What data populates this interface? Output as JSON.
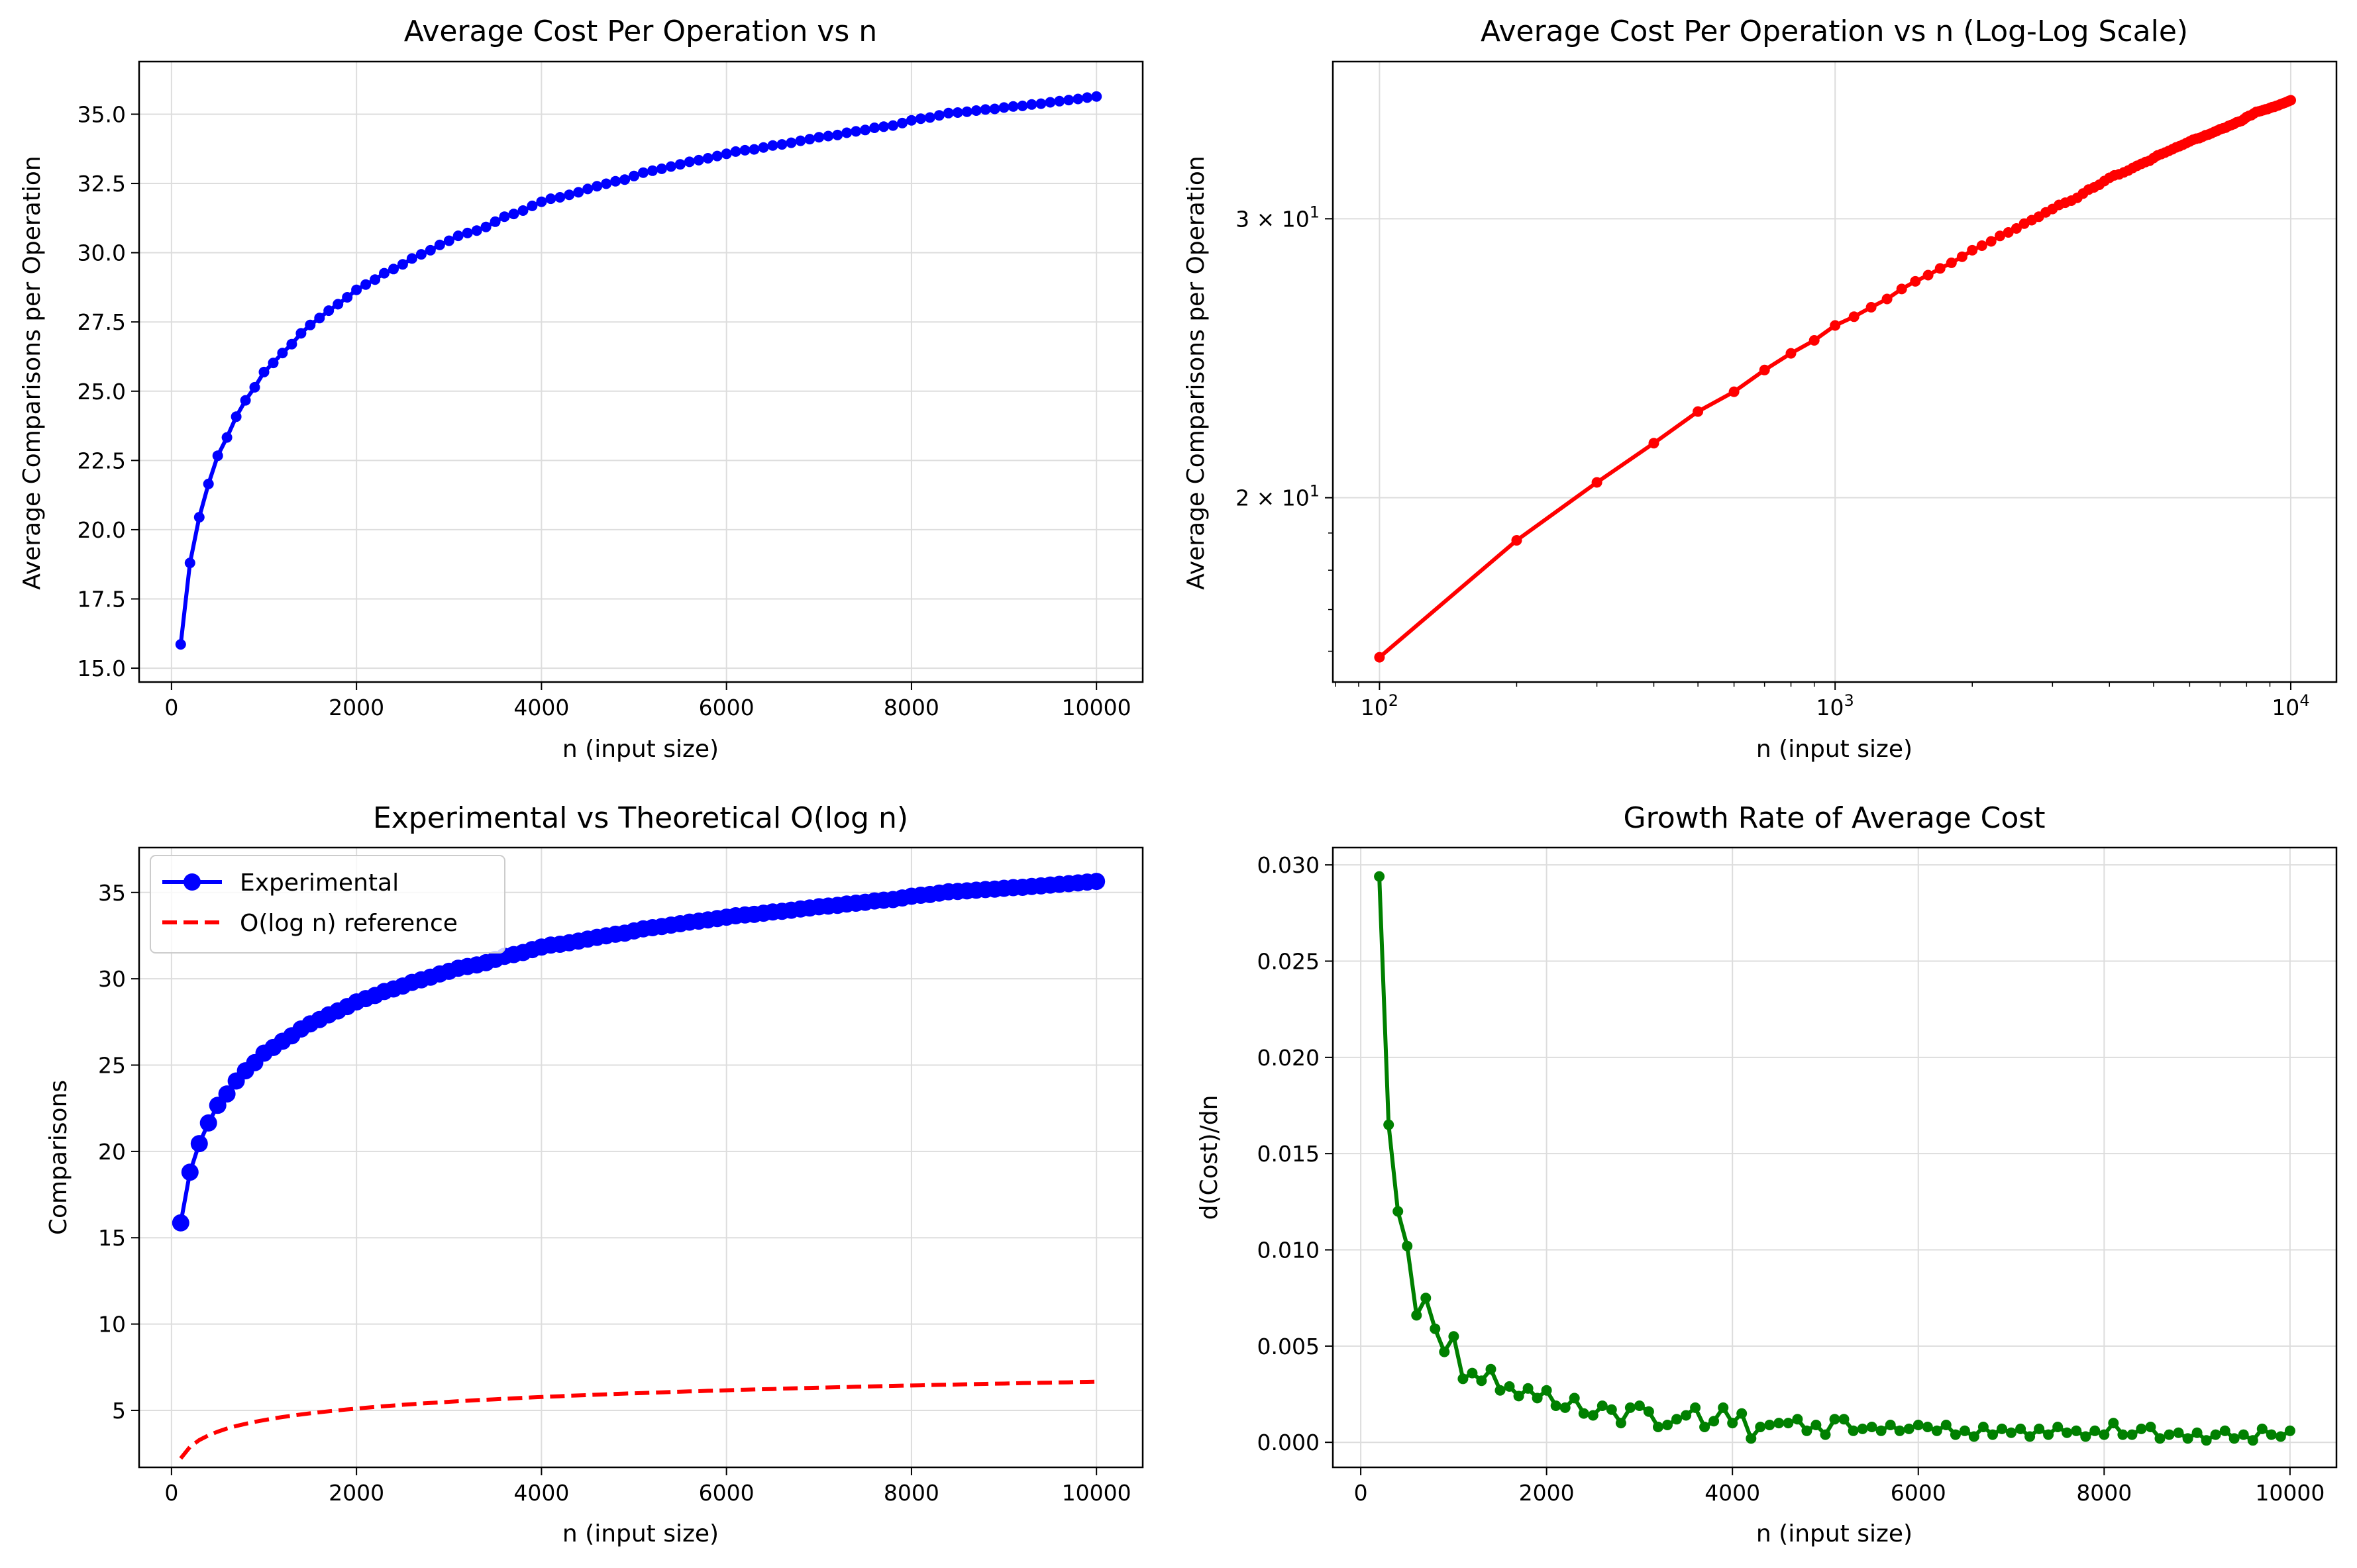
{
  "chart_data": [
    {
      "type": "line",
      "title": "Average Cost Per Operation vs n",
      "xlabel": "n (input size)",
      "ylabel": "Average Comparisons per Operation",
      "xlim": [
        -350,
        10500
      ],
      "ylim": [
        14.5,
        36.9
      ],
      "xticks": [
        0,
        2000,
        4000,
        6000,
        8000,
        10000
      ],
      "xtick_labels": [
        "0",
        "2000",
        "4000",
        "6000",
        "8000",
        "10000"
      ],
      "yticks": [
        15.0,
        17.5,
        20.0,
        22.5,
        25.0,
        27.5,
        30.0,
        32.5,
        35.0
      ],
      "ytick_labels": [
        "15.0",
        "17.5",
        "20.0",
        "22.5",
        "25.0",
        "27.5",
        "30.0",
        "32.5",
        "35.0"
      ],
      "grid": true,
      "series": [
        {
          "color": "#0000ff",
          "marker": "circle",
          "points": "cost"
        }
      ]
    },
    {
      "type": "line",
      "title": "Average Cost Per Operation vs n (Log-Log Scale)",
      "xlabel": "n (input size)",
      "ylabel": "Average Comparisons per Operation",
      "xscale": "log",
      "yscale": "log",
      "xlim": [
        79,
        12600
      ],
      "ylim": [
        15.3,
        37.7
      ],
      "xticks": [
        100,
        1000,
        10000
      ],
      "xtick_labels": [
        [
          "10",
          "2"
        ],
        [
          "10",
          "3"
        ],
        [
          "10",
          "4"
        ]
      ],
      "yticks": [
        20,
        30
      ],
      "ytick_labels": [
        [
          "2 × 10",
          "1"
        ],
        [
          "3 × 10",
          "1"
        ]
      ],
      "grid": true,
      "series": [
        {
          "color": "#ff0000",
          "marker": "circle",
          "points": "cost"
        }
      ]
    },
    {
      "type": "line",
      "title": "Experimental vs Theoretical O(log n)",
      "xlabel": "n (input size)",
      "ylabel": "Comparisons",
      "xlim": [
        -350,
        10500
      ],
      "ylim": [
        1.7,
        37.6
      ],
      "xticks": [
        0,
        2000,
        4000,
        6000,
        8000,
        10000
      ],
      "xtick_labels": [
        "0",
        "2000",
        "4000",
        "6000",
        "8000",
        "10000"
      ],
      "yticks": [
        5,
        10,
        15,
        20,
        25,
        30,
        35
      ],
      "ytick_labels": [
        "5",
        "10",
        "15",
        "20",
        "25",
        "30",
        "35"
      ],
      "grid": true,
      "legend": "upper-left",
      "series": [
        {
          "name": "Experimental",
          "color": "#0000ff",
          "marker": "circle",
          "points": "cost"
        },
        {
          "name": "O(log n) reference",
          "color": "#ff0000",
          "dashed": true,
          "points": "log_ref"
        }
      ]
    },
    {
      "type": "line",
      "title": "Growth Rate of Average Cost",
      "xlabel": "n (input size)",
      "ylabel": "d(Cost)/dn",
      "xlim": [
        -300,
        10500
      ],
      "ylim": [
        -0.0013,
        0.0309
      ],
      "xticks": [
        0,
        2000,
        4000,
        6000,
        8000,
        10000
      ],
      "xtick_labels": [
        "0",
        "2000",
        "4000",
        "6000",
        "8000",
        "10000"
      ],
      "yticks": [
        0.0,
        0.005,
        0.01,
        0.015,
        0.02,
        0.025,
        0.03
      ],
      "ytick_labels": [
        "0.000",
        "0.005",
        "0.010",
        "0.015",
        "0.020",
        "0.025",
        "0.030"
      ],
      "grid": true,
      "series": [
        {
          "color": "#008000",
          "marker": "circle",
          "points": "growth"
        }
      ]
    }
  ],
  "n": [
    100,
    200,
    300,
    400,
    500,
    600,
    700,
    800,
    900,
    1000,
    1100,
    1200,
    1300,
    1400,
    1500,
    1600,
    1700,
    1800,
    1900,
    2000,
    2100,
    2200,
    2300,
    2400,
    2500,
    2600,
    2700,
    2800,
    2900,
    3000,
    3100,
    3200,
    3300,
    3400,
    3500,
    3600,
    3700,
    3800,
    3900,
    4000,
    4100,
    4200,
    4300,
    4400,
    4500,
    4600,
    4700,
    4800,
    4900,
    5000,
    5100,
    5200,
    5300,
    5400,
    5500,
    5600,
    5700,
    5800,
    5900,
    6000,
    6100,
    6200,
    6300,
    6400,
    6500,
    6600,
    6700,
    6800,
    6900,
    7000,
    7100,
    7200,
    7300,
    7400,
    7500,
    7600,
    7700,
    7800,
    7900,
    8000,
    8100,
    8200,
    8300,
    8400,
    8500,
    8600,
    8700,
    8800,
    8900,
    9000,
    9100,
    9200,
    9300,
    9400,
    9500,
    9600,
    9700,
    9800,
    9900,
    10000
  ],
  "cost": [
    15.86,
    18.8,
    20.45,
    21.65,
    22.67,
    23.33,
    24.08,
    24.67,
    25.14,
    25.69,
    26.02,
    26.38,
    26.7,
    27.09,
    27.39,
    27.64,
    27.91,
    28.14,
    28.39,
    28.66,
    28.85,
    29.03,
    29.26,
    29.41,
    29.58,
    29.79,
    29.94,
    30.09,
    30.28,
    30.43,
    30.61,
    30.71,
    30.8,
    30.93,
    31.12,
    31.3,
    31.4,
    31.52,
    31.69,
    31.84,
    31.95,
    32.0,
    32.09,
    32.18,
    32.3,
    32.4,
    32.49,
    32.58,
    32.64,
    32.77,
    32.89,
    32.96,
    33.03,
    33.11,
    33.19,
    33.28,
    33.34,
    33.41,
    33.49,
    33.57,
    33.65,
    33.7,
    33.73,
    33.8,
    33.87,
    33.91,
    33.97,
    34.04,
    34.1,
    34.17,
    34.21,
    34.25,
    34.33,
    34.38,
    34.43,
    34.51,
    34.55,
    34.59,
    34.68,
    34.78,
    34.84,
    34.88,
    34.96,
    35.04,
    35.06,
    35.09,
    35.13,
    35.17,
    35.19,
    35.24,
    35.28,
    35.3,
    35.35,
    35.38,
    35.43,
    35.47,
    35.51,
    35.55,
    35.6,
    35.64
  ],
  "log_ref": [
    3.32,
    4.32,
    4.91,
    5.32,
    5.64,
    5.91,
    6.13,
    6.32,
    6.49,
    6.64,
    6.78,
    6.91,
    7.02,
    7.13,
    7.23,
    7.32,
    7.41,
    7.49,
    7.57,
    7.64,
    7.71,
    7.78,
    7.85,
    7.91,
    7.97,
    8.02,
    8.08,
    8.13,
    8.18,
    8.23,
    8.28,
    8.32,
    8.37,
    8.41,
    8.45,
    8.49,
    8.53,
    8.57,
    8.61,
    8.64,
    8.68,
    8.71,
    8.75,
    8.78,
    8.81,
    8.85,
    8.88,
    8.91,
    8.94,
    8.97,
    8.99,
    9.02,
    9.05,
    9.08,
    9.1,
    9.13,
    9.15,
    9.18,
    9.2,
    9.23,
    9.25,
    9.28,
    9.3,
    9.32,
    9.34,
    9.37,
    9.39,
    9.41,
    9.43,
    9.45,
    9.47,
    9.49,
    9.51,
    9.53,
    9.55,
    9.57,
    9.59,
    9.61,
    9.63,
    9.64,
    9.66,
    9.68,
    9.7,
    9.71,
    9.73,
    9.75,
    9.76,
    9.78,
    9.8,
    9.81,
    9.83,
    9.85,
    9.86,
    9.88,
    9.89,
    9.91,
    9.92,
    9.94,
    9.95,
    9.97
  ],
  "log_ref_scale": 0.668,
  "growth_n": [
    200,
    300,
    400,
    500,
    600,
    700,
    800,
    900,
    1000,
    1100,
    1200,
    1300,
    1400,
    1500,
    1600,
    1700,
    1800,
    1900,
    2000,
    2100,
    2200,
    2300,
    2400,
    2500,
    2600,
    2700,
    2800,
    2900,
    3000,
    3100,
    3200,
    3300,
    3400,
    3500,
    3600,
    3700,
    3800,
    3900,
    4000,
    4100,
    4200,
    4300,
    4400,
    4500,
    4600,
    4700,
    4800,
    4900,
    5000,
    5100,
    5200,
    5300,
    5400,
    5500,
    5600,
    5700,
    5800,
    5900,
    6000,
    6100,
    6200,
    6300,
    6400,
    6500,
    6600,
    6700,
    6800,
    6900,
    7000,
    7100,
    7200,
    7300,
    7400,
    7500,
    7600,
    7700,
    7800,
    7900,
    8000,
    8100,
    8200,
    8300,
    8400,
    8500,
    8600,
    8700,
    8800,
    8900,
    9000,
    9100,
    9200,
    9300,
    9400,
    9500,
    9600,
    9700,
    9800,
    9900,
    10000
  ],
  "growth": [
    0.0294,
    0.0165,
    0.012,
    0.0102,
    0.0066,
    0.0075,
    0.0059,
    0.0047,
    0.0055,
    0.0033,
    0.0036,
    0.0032,
    0.0038,
    0.0027,
    0.0029,
    0.0024,
    0.0028,
    0.0023,
    0.0027,
    0.0019,
    0.0018,
    0.0023,
    0.0015,
    0.0014,
    0.0019,
    0.0017,
    0.001,
    0.0018,
    0.0019,
    0.0016,
    0.0008,
    0.0009,
    0.0012,
    0.0014,
    0.0018,
    0.0008,
    0.0011,
    0.0018,
    0.001,
    0.0015,
    0.0002,
    0.0008,
    0.0009,
    0.001,
    0.001,
    0.0012,
    0.0006,
    0.0009,
    0.0004,
    0.0012,
    0.0012,
    0.0006,
    0.0007,
    0.0008,
    0.0006,
    0.0009,
    0.0006,
    0.0007,
    0.0009,
    0.0008,
    0.0006,
    0.0009,
    0.0004,
    0.0006,
    0.0003,
    0.0008,
    0.0004,
    0.0007,
    0.0005,
    0.0007,
    0.0003,
    0.0007,
    0.0004,
    0.0008,
    0.0005,
    0.0006,
    0.0003,
    0.0006,
    0.0004,
    0.001,
    0.0004,
    0.0004,
    0.0007,
    0.0008,
    0.0002,
    0.0004,
    0.0005,
    0.0002,
    0.0005,
    0.0001,
    0.0004,
    0.0006,
    0.0002,
    0.0004,
    0.0001,
    0.0007,
    0.0004,
    0.0003,
    0.0006
  ]
}
